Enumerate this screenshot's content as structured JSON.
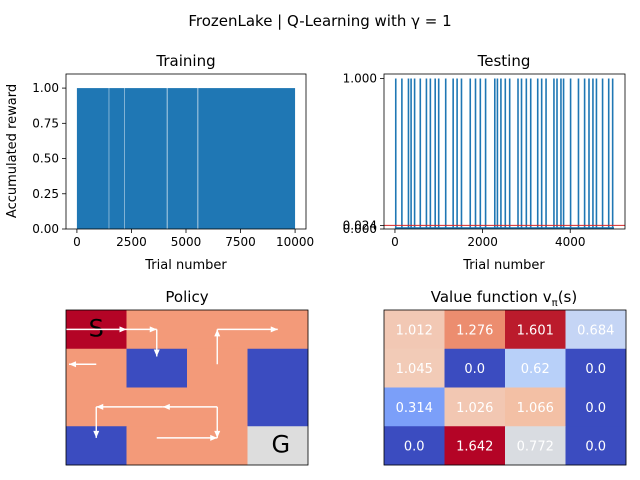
{
  "suptitle": "FrozenLake | Q-Learning with γ = 1",
  "panels": {
    "training": {
      "title": "Training",
      "xlabel": "Trial number",
      "ylabel": "Accumulated reward"
    },
    "testing": {
      "title": "Testing",
      "xlabel": "Trial number",
      "ylabel": ""
    },
    "policy": {
      "title": "Policy"
    },
    "value": {
      "title": "Value function v",
      "title_sub": "π",
      "title_tail": "(s)"
    }
  },
  "colors": {
    "series": "#1f77b4",
    "mean_line": "#d62728",
    "hole": "#3b4cc0",
    "start": "#b40426",
    "frozen": "#f39a79",
    "goal": "#dddddd"
  },
  "chart_data": [
    {
      "type": "bar",
      "name": "training",
      "title": "Training",
      "xlabel": "Trial number",
      "ylabel": "Accumulated reward",
      "xlim": [
        -500,
        10500
      ],
      "ylim": [
        0,
        1.1
      ],
      "x_ticks": [
        0,
        2500,
        5000,
        7500,
        10000
      ],
      "y_ticks": [
        0.0,
        0.25,
        0.5,
        0.75,
        1.0
      ],
      "y_tick_labels": [
        "0.00",
        "0.25",
        "0.50",
        "0.75",
        "1.00"
      ],
      "success_value": 1.0,
      "success_trial_ranges": [
        [
          0,
          1460
        ],
        [
          1480,
          2170
        ],
        [
          2190,
          4120
        ],
        [
          4150,
          5530
        ],
        [
          5560,
          9999
        ]
      ]
    },
    {
      "type": "bar",
      "name": "testing",
      "title": "Testing",
      "xlabel": "Trial number",
      "xlim": [
        -250,
        5250
      ],
      "ylim": [
        0,
        1.03
      ],
      "x_ticks": [
        0,
        2000,
        4000
      ],
      "y_ticks": [
        0.0,
        0.024,
        1.0
      ],
      "y_tick_labels": [
        "0.000",
        "0.024",
        "1.000"
      ],
      "mean_reward": 0.024,
      "success_value": 1.0,
      "success_trials": [
        0,
        140,
        290,
        350,
        430,
        560,
        700,
        790,
        900,
        980,
        1140,
        1310,
        1400,
        1500,
        1700,
        1820,
        1930,
        2050,
        2260,
        2320,
        2400,
        2500,
        2600,
        2790,
        2870,
        2980,
        3080,
        3240,
        3330,
        3430,
        3610,
        3680,
        3770,
        3830,
        3990,
        4170,
        4310,
        4410,
        4500,
        4580,
        4720,
        4860,
        4950
      ]
    },
    {
      "type": "heatmap",
      "name": "policy",
      "title": "Policy",
      "rows": 4,
      "cols": 4,
      "cell_types": [
        [
          "S",
          "F",
          "F",
          "F"
        ],
        [
          "F",
          "H",
          "F",
          "H"
        ],
        [
          "F",
          "F",
          "F",
          "H"
        ],
        [
          "H",
          "F",
          "F",
          "G"
        ]
      ],
      "start_label": "S",
      "goal_label": "G",
      "policy_path": [
        [
          0,
          0
        ],
        [
          0,
          1
        ],
        [
          1,
          1
        ]
      ],
      "policy_arrows": [
        {
          "from": [
            0,
            0.5
          ],
          "to": [
            1,
            0.5
          ]
        },
        {
          "from": [
            1,
            0.5
          ],
          "to": [
            1.5,
            0.5
          ]
        },
        {
          "from": [
            1.5,
            0.5
          ],
          "to": [
            1.5,
            1.2
          ]
        },
        {
          "from": [
            2.5,
            1.4
          ],
          "to": [
            2.5,
            0.5
          ]
        },
        {
          "from": [
            2.5,
            0.5
          ],
          "to": [
            3.5,
            0.5
          ]
        },
        {
          "from": [
            0.5,
            1.4
          ],
          "to": [
            0.05,
            1.4
          ]
        },
        {
          "from": [
            2.5,
            2.5
          ],
          "to": [
            1.6,
            2.5
          ]
        },
        {
          "from": [
            1.6,
            2.5
          ],
          "to": [
            0.5,
            2.5
          ]
        },
        {
          "from": [
            0.5,
            2.5
          ],
          "to": [
            0.5,
            3.3
          ]
        },
        {
          "from": [
            2.5,
            2.5
          ],
          "to": [
            2.5,
            3.3
          ]
        },
        {
          "from": [
            1.5,
            3.3
          ],
          "to": [
            2.5,
            3.3
          ]
        }
      ]
    },
    {
      "type": "heatmap",
      "name": "value_function",
      "title": "Value function vπ(s)",
      "rows": 4,
      "cols": 4,
      "values": [
        [
          1.012,
          1.276,
          1.601,
          0.684
        ],
        [
          1.045,
          0.0,
          0.62,
          0.0
        ],
        [
          0.314,
          1.026,
          1.066,
          0.0
        ],
        [
          0.0,
          1.642,
          0.772,
          0.0
        ]
      ],
      "value_labels": [
        [
          "1.012",
          "1.276",
          "1.601",
          "0.684"
        ],
        [
          "1.045",
          "0.0",
          "0.62",
          "0.0"
        ],
        [
          "0.314",
          "1.026",
          "1.066",
          "0.0"
        ],
        [
          "0.0",
          "1.642",
          "0.772",
          "0.0"
        ]
      ],
      "cell_colors": [
        [
          "#f2c8b4",
          "#ec8d6f",
          "#bb1b2c",
          "#c5d5f5"
        ],
        [
          "#f2cbb7",
          "#3b4cc0",
          "#b8d0f9",
          "#3b4cc0"
        ],
        [
          "#7b9ff9",
          "#f2c7b2",
          "#f3c0a5",
          "#3b4cc0"
        ],
        [
          "#3b4cc0",
          "#b40426",
          "#d9dce1",
          "#3b4cc0"
        ]
      ],
      "colormap": "coolwarm"
    }
  ]
}
